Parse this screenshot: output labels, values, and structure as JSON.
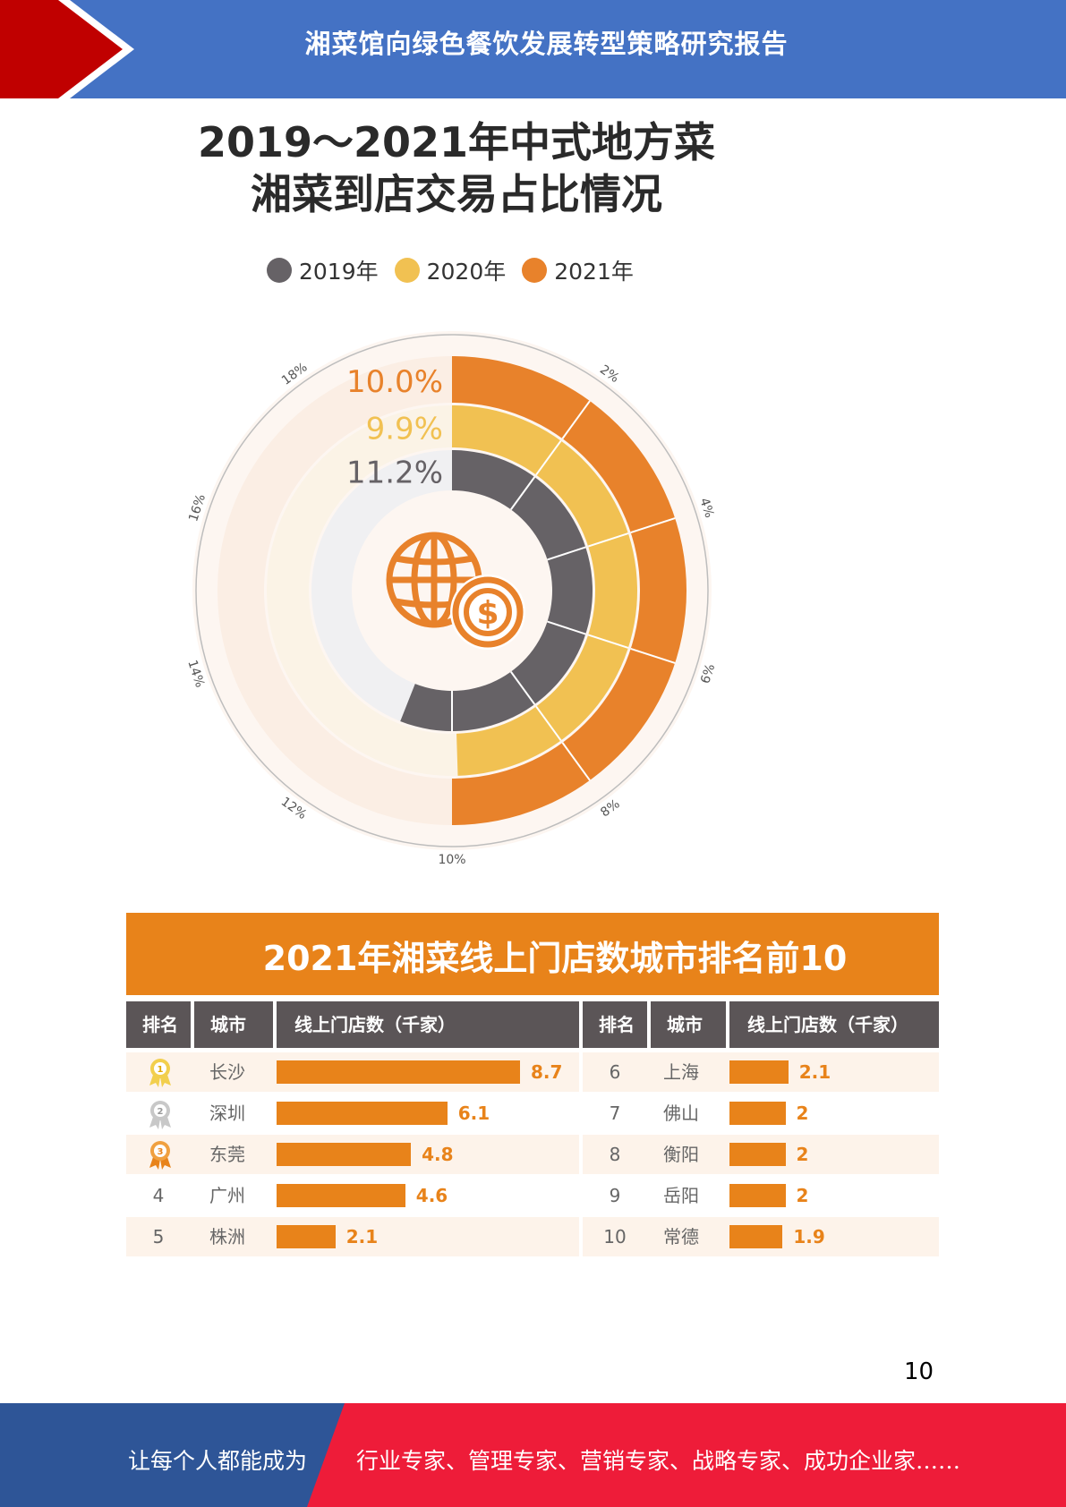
{
  "header": {
    "title": "湘菜馆向绿色餐饮发展转型策略研究报告"
  },
  "radial_chart": {
    "title_line1": "2019～2021年中式地方菜",
    "title_line2": "湘菜到店交易占比情况",
    "legend": [
      {
        "label": "2019年",
        "color": "#666266"
      },
      {
        "label": "2020年",
        "color": "#f1c152"
      },
      {
        "label": "2021年",
        "color": "#e8822b"
      }
    ],
    "scale_labels": [
      "2%",
      "4%",
      "6%",
      "8%",
      "10%",
      "12%",
      "14%",
      "16%",
      "18%"
    ],
    "value_labels": [
      "10.0%",
      "9.9%",
      "11.2%"
    ],
    "center_icon": "globe-dollar-icon"
  },
  "chart_data": [
    {
      "type": "radial_bar",
      "title": "2019～2021年中式地方菜湘菜到店交易占比情况",
      "axis_max": 20,
      "axis_ticks": [
        2,
        4,
        6,
        8,
        10,
        12,
        14,
        16,
        18
      ],
      "unit": "%",
      "series": [
        {
          "name": "2019年",
          "value": 11.2,
          "color": "#666266"
        },
        {
          "name": "2020年",
          "value": 9.9,
          "color": "#f1c152"
        },
        {
          "name": "2021年",
          "value": 10.0,
          "color": "#e8822b"
        }
      ]
    },
    {
      "type": "bar",
      "title": "2021年湘菜线上门店数城市排名前10",
      "xlabel": "城市",
      "ylabel": "线上门店数（千家）",
      "categories": [
        "长沙",
        "深圳",
        "东莞",
        "广州",
        "株洲",
        "上海",
        "佛山",
        "衡阳",
        "岳阳",
        "常德"
      ],
      "values": [
        8.7,
        6.1,
        4.8,
        4.6,
        2.1,
        2.1,
        2,
        2,
        2,
        1.9
      ]
    }
  ],
  "table": {
    "title": "2021年湘菜线上门店数城市排名前10",
    "headers": {
      "rank": "排名",
      "city": "城市",
      "stores": "线上门店数（千家）"
    },
    "max_value": 8.7,
    "left_rows": [
      {
        "rank": "1",
        "city": "长沙",
        "value": "8.7",
        "num": 8.7,
        "medal": "gold-medal-icon"
      },
      {
        "rank": "2",
        "city": "深圳",
        "value": "6.1",
        "num": 6.1,
        "medal": "silver-medal-icon"
      },
      {
        "rank": "3",
        "city": "东莞",
        "value": "4.8",
        "num": 4.8,
        "medal": "bronze-medal-icon"
      },
      {
        "rank": "4",
        "city": "广州",
        "value": "4.6",
        "num": 4.6
      },
      {
        "rank": "5",
        "city": "株洲",
        "value": "2.1",
        "num": 2.1
      }
    ],
    "right_rows": [
      {
        "rank": "6",
        "city": "上海",
        "value": "2.1",
        "num": 2.1
      },
      {
        "rank": "7",
        "city": "佛山",
        "value": "2",
        "num": 2
      },
      {
        "rank": "8",
        "city": "衡阳",
        "value": "2",
        "num": 2
      },
      {
        "rank": "9",
        "city": "岳阳",
        "value": "2",
        "num": 2
      },
      {
        "rank": "10",
        "city": "常德",
        "value": "1.9",
        "num": 1.9
      }
    ],
    "colors": {
      "bar": "#e8831a",
      "header": "#5b5557",
      "row_alt": "#fdf3ea"
    }
  },
  "page": {
    "number": "10"
  },
  "footer": {
    "left_text": "让每个人都能成为",
    "right_text": "行业专家、管理专家、营销专家、战略专家、成功企业家……",
    "colors": {
      "left": "#2e5597",
      "right": "#ee1c39"
    }
  }
}
